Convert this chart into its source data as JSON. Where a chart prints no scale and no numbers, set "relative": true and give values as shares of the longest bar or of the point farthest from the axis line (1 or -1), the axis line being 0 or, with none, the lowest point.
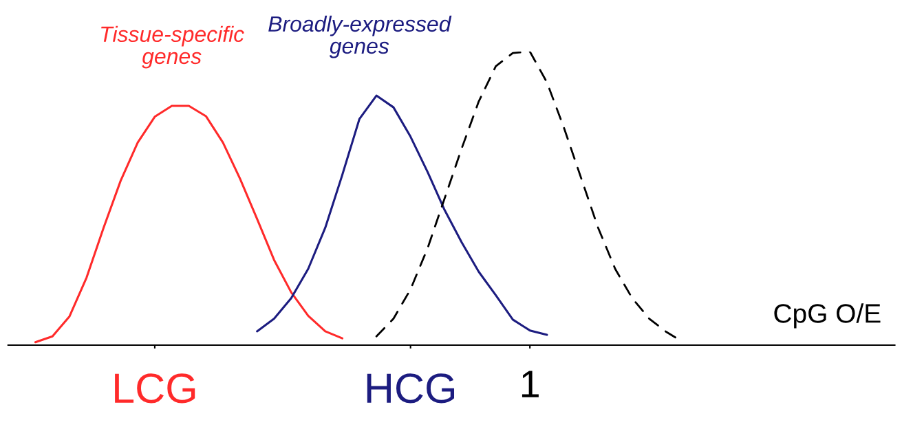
{
  "chart_data": {
    "type": "line",
    "relative": true,
    "xlabel": "CpG O/E",
    "categories": [
      null,
      null,
      null,
      null,
      null,
      null,
      null,
      null,
      "LCG",
      null,
      null,
      null,
      null,
      null,
      null,
      null,
      null,
      null,
      null,
      null,
      null,
      null,
      null,
      "HCG",
      null,
      null,
      null,
      null,
      null,
      null,
      "1",
      null,
      null,
      null,
      null,
      null,
      null,
      null,
      null,
      null,
      null,
      null,
      null,
      null,
      null,
      null,
      null,
      null,
      null,
      null,
      null,
      null
    ],
    "series": [
      {
        "name": "Tissue-specific\ngenes",
        "color": "#ff2a2a",
        "line_style": "solid",
        "values": [
          null,
          0.01,
          0.03,
          0.098,
          0.23,
          0.4,
          0.56,
          0.69,
          0.778,
          0.815,
          0.815,
          0.78,
          0.69,
          0.567,
          0.43,
          0.29,
          0.18,
          0.1,
          0.047,
          0.023,
          null,
          null,
          null,
          null,
          null,
          null,
          null,
          null,
          null,
          null,
          null,
          null,
          null,
          null,
          null,
          null,
          null,
          null,
          null,
          null,
          null,
          null,
          null,
          null,
          null,
          null,
          null,
          null,
          null,
          null,
          null,
          null
        ]
      },
      {
        "name": "Broadly-expressed\ngenes",
        "color": "#1c1c80",
        "line_style": "solid",
        "values": [
          null,
          null,
          null,
          null,
          null,
          null,
          null,
          null,
          null,
          null,
          null,
          null,
          null,
          null,
          0.047,
          0.09,
          0.16,
          0.26,
          0.4,
          0.58,
          0.77,
          0.85,
          0.81,
          0.71,
          0.59,
          0.46,
          0.35,
          0.25,
          0.17,
          0.087,
          0.05,
          0.035,
          null,
          null,
          null,
          null,
          null,
          null,
          null,
          null,
          null,
          null,
          null,
          null,
          null,
          null,
          null,
          null,
          null,
          null,
          null,
          null
        ]
      },
      {
        "color": "#000000",
        "line_style": "dashed",
        "values": [
          null,
          null,
          null,
          null,
          null,
          null,
          null,
          null,
          null,
          null,
          null,
          null,
          null,
          null,
          null,
          null,
          null,
          null,
          null,
          null,
          null,
          0.03,
          0.09,
          0.19,
          0.33,
          0.5,
          0.67,
          0.83,
          0.95,
          0.995,
          1,
          0.895,
          0.74,
          0.57,
          0.4,
          0.26,
          0.16,
          0.09,
          0.045,
          0.01,
          null,
          null,
          null,
          null,
          null,
          null,
          null,
          null,
          null,
          null,
          null,
          null
        ]
      }
    ]
  }
}
